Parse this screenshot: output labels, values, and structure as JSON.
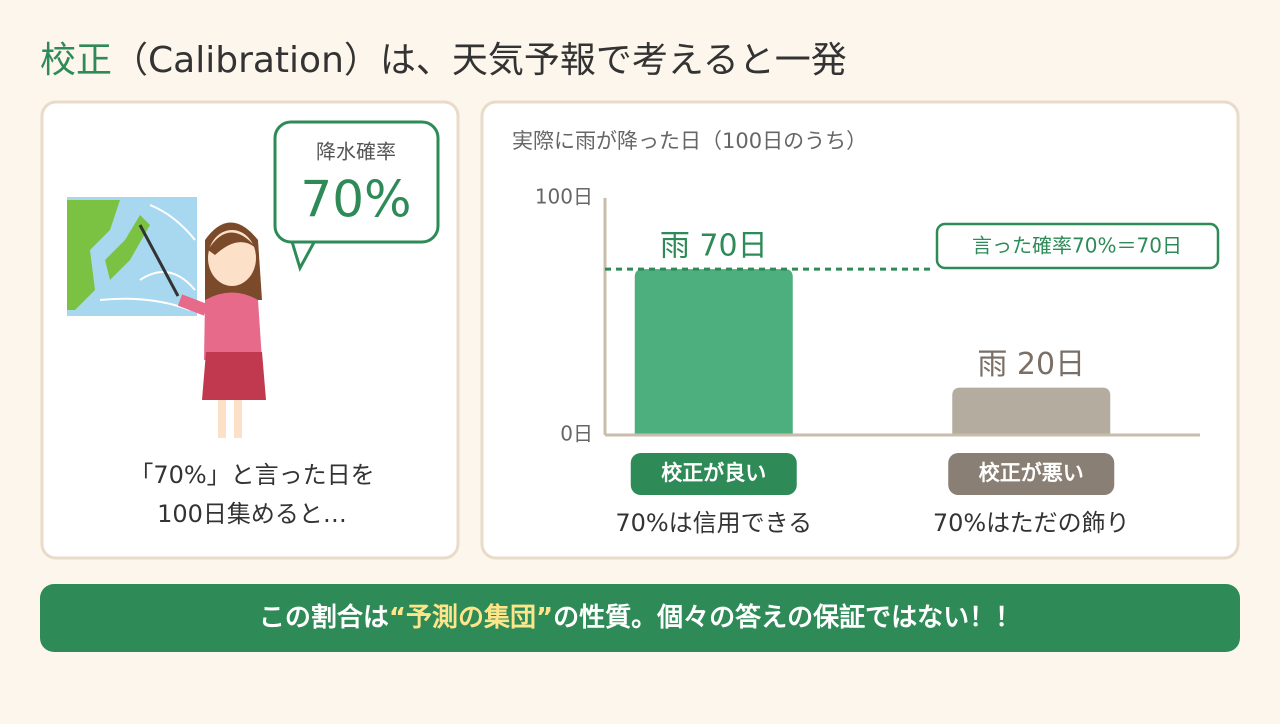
{
  "header": {
    "title_highlight": "校正",
    "title_rest": "（Calibration）は、天気予報で考えると一発"
  },
  "left_panel": {
    "bubble_label": "降水確率",
    "bubble_value": "70%",
    "caption_lines": [
      "「70%」と言った日を",
      "100日集めると…"
    ]
  },
  "chart_data": {
    "type": "bar",
    "title": "実際に雨が降った日（100日のうち）",
    "categories": [
      "校正が良い",
      "校正が悪い"
    ],
    "descriptions": [
      "70%は信用できる",
      "70%はただの飾り"
    ],
    "values": [
      70,
      20
    ],
    "value_labels": [
      "雨 70日",
      "雨 20日"
    ],
    "colors": [
      "#4caf7d",
      "#b5aca0"
    ],
    "value_label_colors": [
      "#2e8b57",
      "#7a6f66"
    ],
    "category_colors": [
      "#2e8b57",
      "#8a7f75"
    ],
    "ylim": [
      0,
      100
    ],
    "yticks": [
      {
        "value": 0,
        "label": "0日"
      },
      {
        "value": 100,
        "label": "100日"
      }
    ],
    "reference_line": {
      "value": 70,
      "label": "言った確率70%＝70日",
      "color": "#2e8b57"
    }
  },
  "footer": {
    "before": "この割合は",
    "highlight": "“予測の集団”",
    "after": "の性質。個々の答えの保証ではない！！"
  }
}
